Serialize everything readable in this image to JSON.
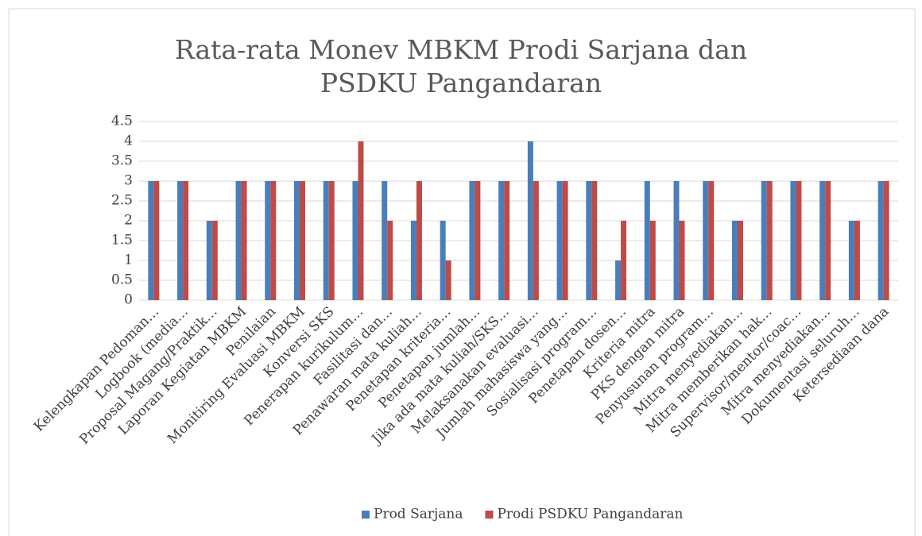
{
  "chart_data": {
    "type": "bar",
    "title": "Rata-rata Monev MBKM Prodi Sarjana dan PSDKU Pangandaran",
    "categories": [
      "Kelengkapan Pedoman…",
      "Logbook (media…",
      "Proposal Magang/Praktik…",
      "Laporan Kegiatan MBKM",
      "Penilaian",
      "Monitiring Evaluasi MBKM",
      "Konversi SKS",
      "Penerapan kurikulum…",
      "Fasilitasi dan…",
      "Penawaran mata kuliah…",
      "Penetapan kriteria…",
      "Penetapan jumlah…",
      "Jika ada mata kuliah/SKS…",
      "Melaksanakan evaluasi…",
      "Jumlah mahasiswa yang…",
      "Sosialisasi program…",
      "Penetapan dosen…",
      "Kriteria mitra",
      "PKS dengan mitra",
      "Penyusunan program…",
      "Mitra menyediakan…",
      "Mitra memberikan hak…",
      "Supervisor/mentor/coac…",
      "Mitra menyediakan…",
      "Dokumentasi seluruh…",
      "Ketersediaan dana"
    ],
    "series": [
      {
        "name": "Prod Sarjana",
        "color": "#4a7ebb",
        "values": [
          3,
          3,
          2,
          3,
          3,
          3,
          3,
          3,
          3,
          2,
          2,
          3,
          3,
          4,
          3,
          3,
          1,
          3,
          3,
          3,
          2,
          3,
          3,
          3,
          2,
          3
        ]
      },
      {
        "name": "Prodi PSDKU Pangandaran",
        "color": "#be4b48",
        "values": [
          3,
          3,
          2,
          3,
          3,
          3,
          3,
          4,
          2,
          3,
          1,
          3,
          3,
          3,
          3,
          3,
          2,
          2,
          2,
          3,
          2,
          3,
          3,
          3,
          2,
          3
        ]
      }
    ],
    "ylim": [
      0,
      4.5
    ],
    "yticks": [
      0,
      0.5,
      1,
      1.5,
      2,
      2.5,
      3,
      3.5,
      4,
      4.5
    ],
    "grid": true,
    "legend": "bottom"
  }
}
